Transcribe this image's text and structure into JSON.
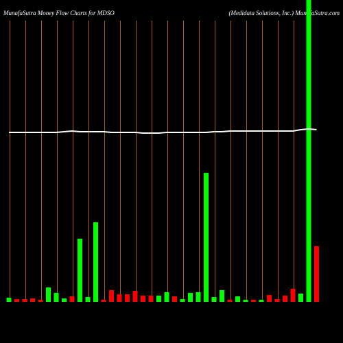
{
  "chart_data": {
    "type": "bar",
    "title": "MunafaSutra  Money Flow  Charts for MDSO",
    "subtitle": "(Medidata  Solutions,  Inc.) MunafaSutra.com",
    "categories": [
      null,
      null,
      null,
      null,
      null,
      null,
      null,
      null,
      null,
      null,
      null,
      null,
      null,
      null,
      null,
      null,
      null,
      null,
      null,
      null,
      null,
      null,
      null,
      null,
      null,
      null,
      null,
      null,
      null,
      null,
      null,
      null,
      null,
      null,
      null,
      null,
      null,
      null,
      null,
      null
    ],
    "values": [
      6,
      4,
      4,
      5,
      3,
      21,
      13,
      5,
      8,
      92,
      7,
      116,
      3,
      17,
      11,
      11,
      16,
      9,
      9,
      9,
      14,
      8,
      4,
      13,
      14,
      188,
      7,
      17,
      3,
      8,
      3,
      3,
      3,
      10,
      4,
      9,
      19,
      12,
      460,
      81
    ],
    "colors": [
      "#00ff00",
      "#ff0000",
      "#ff0000",
      "#ff0000",
      "#ff0000",
      "#00ff00",
      "#00ff00",
      "#00ff00",
      "#ff0000",
      "#00ff00",
      "#00ff00",
      "#00ff00",
      "#ff0000",
      "#ff0000",
      "#ff0000",
      "#ff0000",
      "#ff0000",
      "#ff0000",
      "#ff0000",
      "#00ff00",
      "#00ff00",
      "#ff0000",
      "#00ff00",
      "#00ff00",
      "#00ff00",
      "#00ff00",
      "#00ff00",
      "#00ff00",
      "#ff0000",
      "#00ff00",
      "#00ff00",
      "#ff0000",
      "#00ff00",
      "#ff0000",
      "#ff0000",
      "#ff0000",
      "#ff0000",
      "#00ff00",
      "#00ff00",
      "#ff0000"
    ],
    "line": {
      "color": "#ffffff",
      "values": [
        247,
        247,
        247,
        247,
        247,
        247,
        247,
        248,
        249,
        248,
        248,
        248,
        248,
        247,
        247,
        247,
        247,
        246,
        246,
        246,
        247,
        247,
        247,
        247,
        247,
        247,
        248,
        248,
        249,
        249,
        249,
        249,
        249,
        249,
        249,
        249,
        249,
        251,
        252,
        251
      ]
    },
    "ylim": [
      0,
      440
    ],
    "grid_color": "#b25c00"
  }
}
